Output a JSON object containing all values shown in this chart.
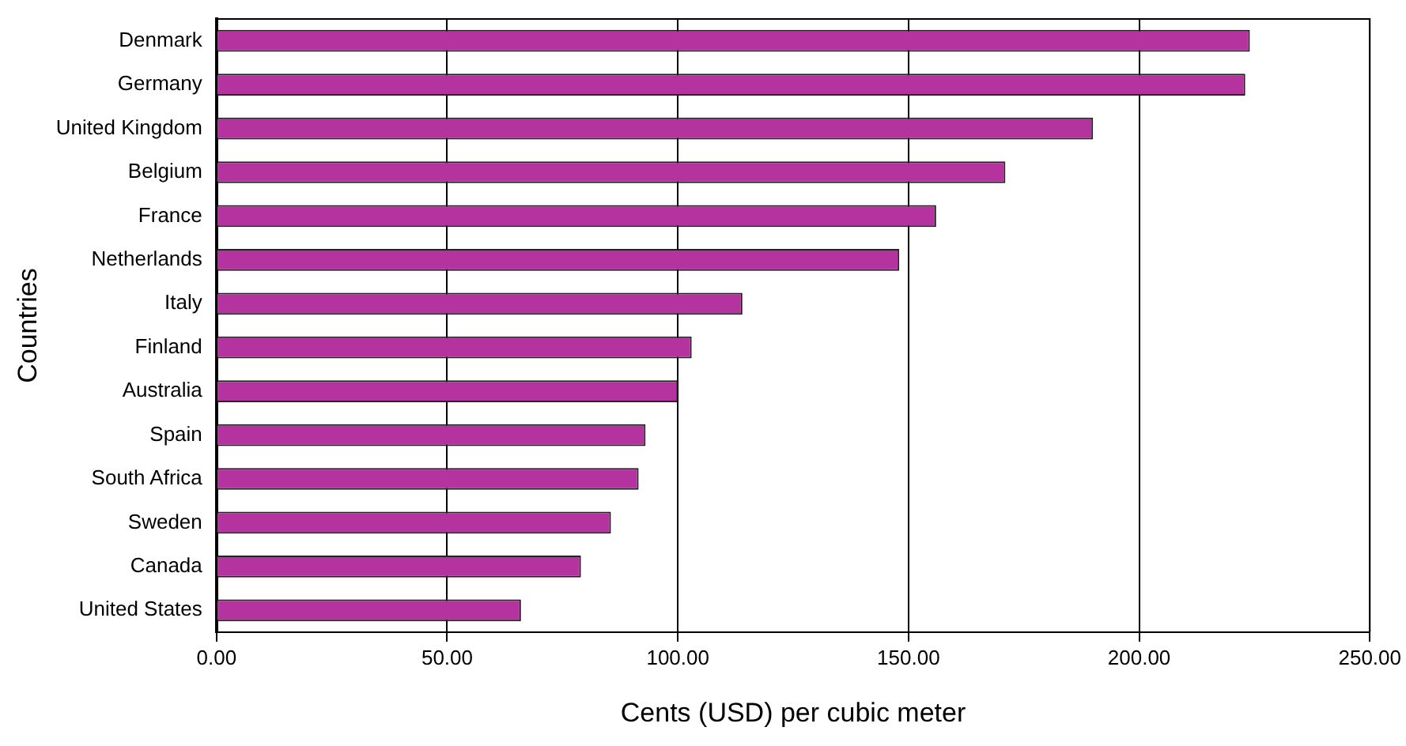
{
  "chart_data": {
    "type": "bar",
    "orientation": "horizontal",
    "xlabel": "Cents (USD) per cubic meter",
    "ylabel": "Countries",
    "categories": [
      "Denmark",
      "Germany",
      "United Kingdom",
      "Belgium",
      "France",
      "Netherlands",
      "Italy",
      "Finland",
      "Australia",
      "Spain",
      "South Africa",
      "Sweden",
      "Canada",
      "United States"
    ],
    "values": [
      224,
      223,
      190,
      171,
      156,
      148,
      114,
      103,
      100,
      93,
      91.5,
      85.5,
      79,
      66
    ],
    "color": "#b5339f",
    "xlim": [
      0,
      250
    ],
    "xticks": [
      {
        "value": 0,
        "label": "0.00"
      },
      {
        "value": 50,
        "label": "50.00"
      },
      {
        "value": 100,
        "label": "100.00"
      },
      {
        "value": 150,
        "label": "150.00"
      },
      {
        "value": 200,
        "label": "200.00"
      },
      {
        "value": 250,
        "label": "250.00"
      }
    ],
    "grid": "x",
    "legend": false
  }
}
